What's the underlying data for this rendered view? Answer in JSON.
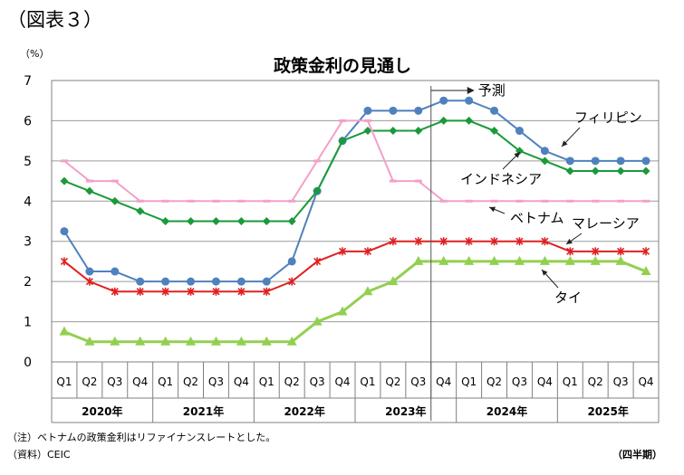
{
  "figure_label": "（図表３）",
  "notes": {
    "note": "（注）ベトナムの政策金利はリファイナンスレートとした。",
    "source": "（資料）CEIC",
    "period": "（四半期）"
  },
  "chart_data": {
    "type": "line",
    "title": "政策金利の見通し",
    "ylabel": "（%）",
    "ylim": [
      0,
      7
    ],
    "yticks": [
      0,
      1,
      2,
      3,
      4,
      5,
      6,
      7
    ],
    "grid": true,
    "quarters": [
      "Q1",
      "Q2",
      "Q3",
      "Q4",
      "Q1",
      "Q2",
      "Q3",
      "Q4",
      "Q1",
      "Q2",
      "Q3",
      "Q4",
      "Q1",
      "Q2",
      "Q3",
      "Q4",
      "Q1",
      "Q2",
      "Q3",
      "Q4",
      "Q1",
      "Q2",
      "Q3",
      "Q4"
    ],
    "years": [
      "2020年",
      "2021年",
      "2022年",
      "2023年",
      "2024年",
      "2025年"
    ],
    "forecast_label": "予測",
    "forecast_start_index": 15,
    "series": [
      {
        "name": "フィリピン",
        "color": "#4f81bd",
        "marker": "circle",
        "values": [
          3.25,
          2.25,
          2.25,
          2.0,
          2.0,
          2.0,
          2.0,
          2.0,
          2.0,
          2.5,
          4.25,
          5.5,
          6.25,
          6.25,
          6.25,
          6.5,
          6.5,
          6.25,
          5.75,
          5.25,
          5.0,
          5.0,
          5.0,
          5.0
        ]
      },
      {
        "name": "インドネシア",
        "color": "#1a9a3a",
        "marker": "diamond",
        "values": [
          4.5,
          4.25,
          4.0,
          3.75,
          3.5,
          3.5,
          3.5,
          3.5,
          3.5,
          3.5,
          4.25,
          5.5,
          5.75,
          5.75,
          5.75,
          6.0,
          6.0,
          5.75,
          5.25,
          5.0,
          4.75,
          4.75,
          4.75,
          4.75
        ]
      },
      {
        "name": "ベトナム",
        "color": "#f4a0c8",
        "marker": "dash",
        "values": [
          5.0,
          4.5,
          4.5,
          4.0,
          4.0,
          4.0,
          4.0,
          4.0,
          4.0,
          4.0,
          5.0,
          6.0,
          6.0,
          4.5,
          4.5,
          4.0,
          4.0,
          4.0,
          4.0,
          4.0,
          4.0,
          4.0,
          4.0,
          4.0
        ]
      },
      {
        "name": "マレーシア",
        "color": "#e02020",
        "marker": "star",
        "values": [
          2.5,
          2.0,
          1.75,
          1.75,
          1.75,
          1.75,
          1.75,
          1.75,
          1.75,
          2.0,
          2.5,
          2.75,
          2.75,
          3.0,
          3.0,
          3.0,
          3.0,
          3.0,
          3.0,
          3.0,
          2.75,
          2.75,
          2.75,
          2.75
        ]
      },
      {
        "name": "タイ",
        "color": "#92d050",
        "marker": "triangle",
        "values": [
          0.75,
          0.5,
          0.5,
          0.5,
          0.5,
          0.5,
          0.5,
          0.5,
          0.5,
          0.5,
          1.0,
          1.25,
          1.75,
          2.0,
          2.5,
          2.5,
          2.5,
          2.5,
          2.5,
          2.5,
          2.5,
          2.5,
          2.5,
          2.25
        ]
      }
    ]
  }
}
